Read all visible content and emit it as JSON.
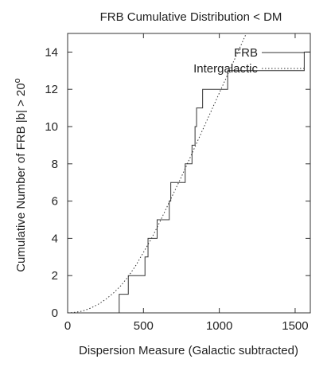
{
  "chart_data": {
    "type": "line",
    "title": "FRB Cumulative Distribution < DM",
    "xlabel": "Dispersion Measure (Galactic subtracted)",
    "ylabel_main": "Cumulative Number of FRB |b| > 20",
    "ylabel_superscript": "o",
    "xlim": [
      0,
      1600
    ],
    "ylim": [
      0,
      15
    ],
    "xticks": [
      0,
      500,
      1000,
      1500
    ],
    "yticks": [
      0,
      2,
      4,
      6,
      8,
      10,
      12,
      14
    ],
    "grid": false,
    "legend_position": "top-right",
    "series": [
      {
        "name": "FRB",
        "style": "solid",
        "color": "#333333",
        "step_x": [
          340,
          400,
          510,
          530,
          590,
          670,
          680,
          775,
          820,
          840,
          850,
          890,
          1055,
          1560
        ],
        "step_y": [
          1,
          2,
          3,
          4,
          5,
          6,
          7,
          8,
          9,
          10,
          11,
          12,
          13,
          14
        ]
      },
      {
        "name": "Intergalactic",
        "style": "dotted",
        "color": "#333333",
        "x": [
          0,
          50,
          100,
          150,
          200,
          250,
          300,
          350,
          400,
          450,
          500,
          550,
          600,
          650,
          700,
          750,
          800,
          850,
          900,
          950,
          1000,
          1050,
          1100,
          1150,
          1200,
          1250
        ],
        "y": [
          0,
          0.03,
          0.1,
          0.25,
          0.45,
          0.72,
          1.05,
          1.45,
          1.95,
          2.55,
          3.25,
          3.95,
          4.75,
          5.6,
          6.45,
          7.3,
          8.2,
          9.1,
          10.0,
          10.9,
          11.8,
          12.7,
          13.6,
          14.5,
          15.4,
          16.3
        ]
      }
    ]
  }
}
